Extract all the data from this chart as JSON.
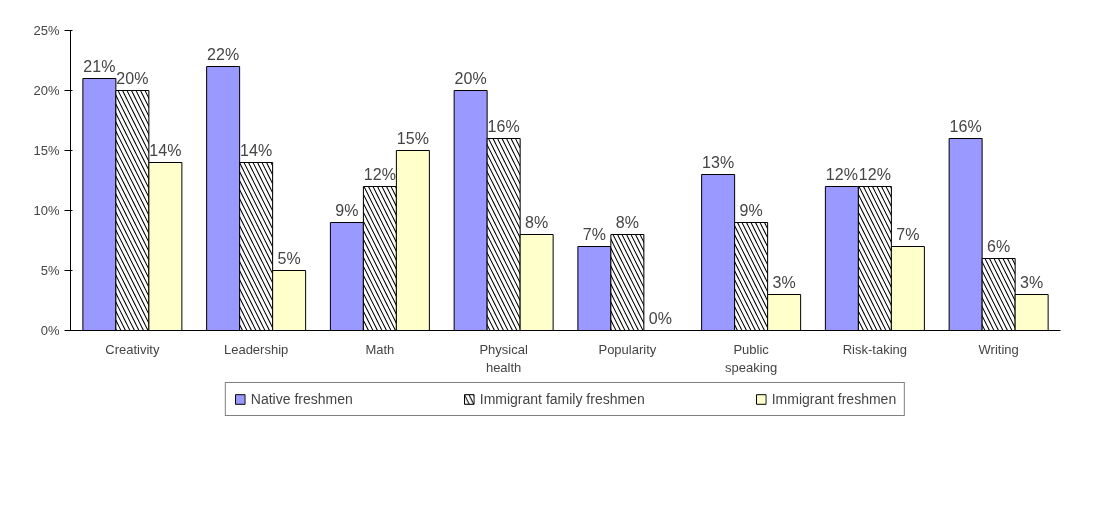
{
  "chart_data": {
    "type": "bar",
    "categories": [
      "Creativity",
      "Leadership",
      "Math",
      "Physical\nhealth",
      "Popularity",
      "Public\nspeaking",
      "Risk-taking",
      "Writing"
    ],
    "series": [
      {
        "name": "Native freshmen",
        "color": "#9999ff",
        "values": [
          21,
          22,
          9,
          20,
          7,
          13,
          12,
          16
        ],
        "value_labels": [
          "21%",
          "22%",
          "9%",
          "20%",
          "7%",
          "13%",
          "12%",
          "16%"
        ]
      },
      {
        "name": "Immigrant family freshmen",
        "color": "#000000",
        "values": [
          20,
          14,
          12,
          16,
          8,
          9,
          12,
          6
        ],
        "value_labels": [
          "20%",
          "14%",
          "12%",
          "16%",
          "8%",
          "9%",
          "12%",
          "6%"
        ]
      },
      {
        "name": "Immigrant freshmen",
        "color": "#ffffcc",
        "values": [
          14,
          5,
          15,
          8,
          0,
          3,
          7,
          3
        ],
        "value_labels": [
          "14%",
          "5%",
          "15%",
          "8%",
          "0%",
          "3%",
          "7%",
          "3%"
        ]
      }
    ],
    "ylim": [
      0,
      25
    ],
    "yticks": [
      {
        "value": 0,
        "label": "0%"
      },
      {
        "value": 5,
        "label": "5%"
      },
      {
        "value": 10,
        "label": "10%"
      },
      {
        "value": 15,
        "label": "15%"
      },
      {
        "value": 20,
        "label": "20%"
      },
      {
        "value": 25,
        "label": "25%"
      }
    ],
    "grid": false,
    "legend": "bottom"
  }
}
